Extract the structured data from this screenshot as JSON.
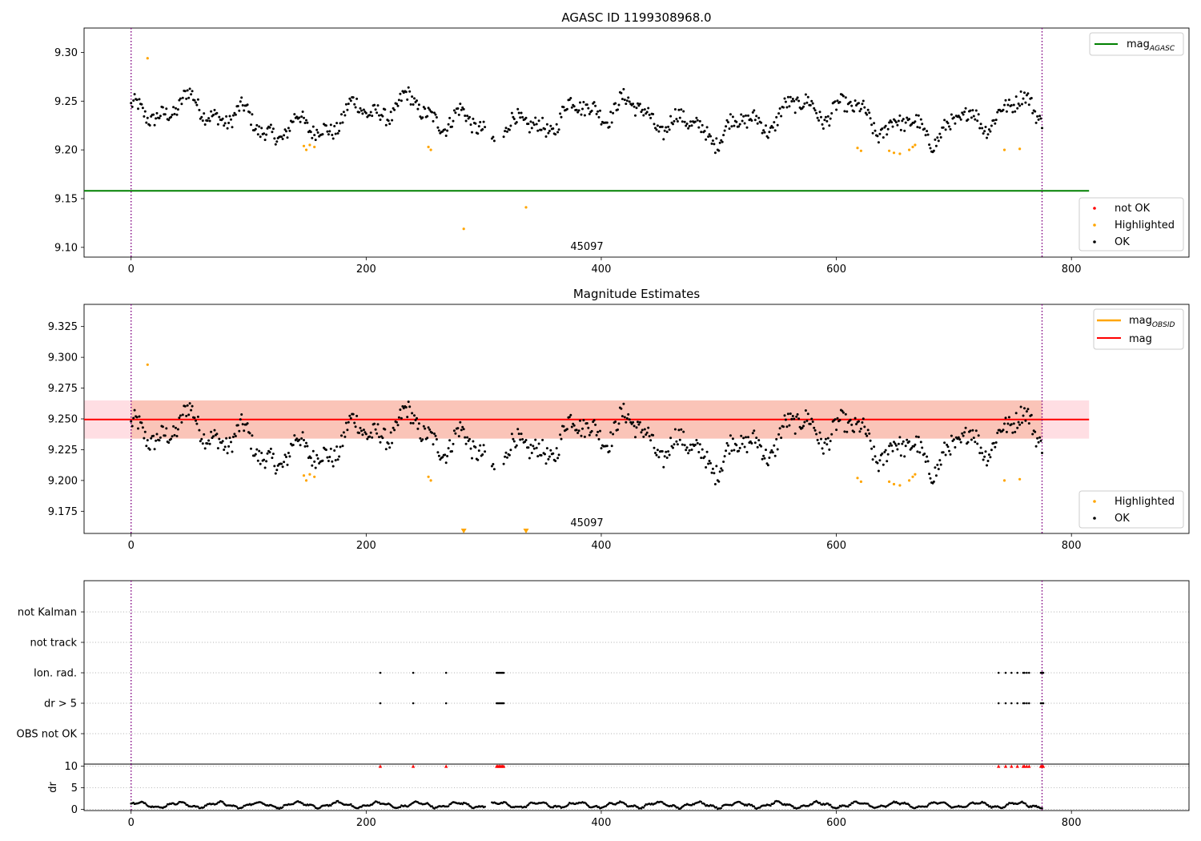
{
  "figure": {
    "background": "#ffffff",
    "colors": {
      "ok": "#000000",
      "highlighted": "#ffa500",
      "not_ok": "#ff0000",
      "mag_agasc": "#008000",
      "mag_obsid": "#ffa500",
      "mag": "#ff0000",
      "band_inner": "#f4a582",
      "band_outer": "#ffb6c1",
      "obs_boundary": "#800080",
      "grid": "#b0b0b0"
    }
  },
  "chart_data": [
    {
      "type": "scatter",
      "title": "AGASC ID 1199308968.0",
      "xlabel": "",
      "ylabel": "",
      "xlim": [
        -40,
        900
      ],
      "ylim": [
        9.09,
        9.325
      ],
      "x_ticks": [
        0,
        200,
        400,
        600,
        800
      ],
      "y_ticks": [
        9.1,
        9.15,
        9.2,
        9.25,
        9.3
      ],
      "y_tick_labels": [
        "9.10",
        "9.15",
        "9.20",
        "9.25",
        "9.30"
      ],
      "legend_upper": {
        "position": "upper right",
        "entries": [
          {
            "label": "mag",
            "sub": "AGASC",
            "color": "#008000",
            "kind": "line"
          }
        ]
      },
      "legend_lower": {
        "position": "lower right",
        "entries": [
          {
            "label": "not OK",
            "color": "#ff0000",
            "kind": "dot"
          },
          {
            "label": "Highlighted",
            "color": "#ffa500",
            "kind": "dot"
          },
          {
            "label": "OK",
            "color": "#000000",
            "kind": "dot"
          }
        ]
      },
      "annotation": {
        "text": "45097",
        "x": 388,
        "y": 9.095
      },
      "vlines": [
        0,
        775
      ],
      "hline": {
        "name": "mag_AGASC",
        "y": 9.158,
        "x_range": [
          -40,
          815
        ]
      },
      "series": [
        {
          "name": "OK",
          "color": "#000000",
          "generator": {
            "x_start": 0,
            "x_end": 775,
            "step": 1,
            "base": 9.232,
            "waves": [
              {
                "amp": 0.012,
                "period": 180,
                "phase": 0
              },
              {
                "amp": 0.01,
                "period": 47,
                "phase": 1.3
              },
              {
                "amp": 0.006,
                "period": 23,
                "phase": 0.7
              }
            ],
            "noise": 0.008,
            "gaps": [
              [
                302,
                306
              ],
              [
                310,
                316
              ]
            ]
          }
        },
        {
          "name": "Highlighted",
          "color": "#ffa500",
          "points": [
            [
              14,
              9.294
            ],
            [
              147,
              9.204
            ],
            [
              149,
              9.2
            ],
            [
              152,
              9.205
            ],
            [
              156,
              9.203
            ],
            [
              253,
              9.203
            ],
            [
              255,
              9.2
            ],
            [
              283,
              9.119
            ],
            [
              336,
              9.141
            ],
            [
              618,
              9.202
            ],
            [
              621,
              9.199
            ],
            [
              645,
              9.199
            ],
            [
              649,
              9.197
            ],
            [
              654,
              9.196
            ],
            [
              662,
              9.2
            ],
            [
              665,
              9.203
            ],
            [
              667,
              9.205
            ],
            [
              743,
              9.2
            ],
            [
              756,
              9.201
            ]
          ]
        }
      ]
    },
    {
      "type": "scatter",
      "title": "Magnitude Estimates",
      "xlabel": "",
      "ylabel": "",
      "xlim": [
        -40,
        900
      ],
      "ylim": [
        9.157,
        9.343
      ],
      "x_ticks": [
        0,
        200,
        400,
        600,
        800
      ],
      "y_ticks": [
        9.175,
        9.2,
        9.225,
        9.25,
        9.275,
        9.3,
        9.325
      ],
      "y_tick_labels": [
        "9.175",
        "9.200",
        "9.225",
        "9.250",
        "9.275",
        "9.300",
        "9.325"
      ],
      "legend_upper": {
        "position": "upper right",
        "entries": [
          {
            "label": "mag",
            "sub": "OBSID",
            "color": "#ffa500",
            "kind": "line"
          },
          {
            "label": "mag",
            "sub": "",
            "color": "#ff0000",
            "kind": "line"
          }
        ]
      },
      "legend_lower": {
        "position": "lower right",
        "entries": [
          {
            "label": "Highlighted",
            "color": "#ffa500",
            "kind": "dot"
          },
          {
            "label": "OK",
            "color": "#000000",
            "kind": "dot"
          }
        ]
      },
      "annotation": {
        "text": "45097",
        "x": 388,
        "y": 9.163
      },
      "vlines": [
        0,
        775
      ],
      "mag": 9.2495,
      "band_inner": [
        9.234,
        9.265
      ],
      "band_outer": [
        9.234,
        9.265
      ],
      "band_x_range": [
        -40,
        815
      ],
      "mag_obsid_segment": [
        0,
        775
      ],
      "offscale_markers": [
        [
          283,
          9.158
        ],
        [
          336,
          9.158
        ]
      ]
    },
    {
      "type": "scatter",
      "title": "",
      "xlabel": "",
      "ylabel": "",
      "xlim": [
        -40,
        900
      ],
      "x_ticks": [
        0,
        200,
        400,
        600,
        800
      ],
      "flag_categories": [
        "OBS not OK",
        "dr > 5",
        "Ion. rad.",
        "not track",
        "not Kalman"
      ],
      "vlines": [
        0,
        775
      ],
      "flags": {
        "dr > 5": [
          212,
          240,
          268,
          311,
          312,
          313,
          314,
          315,
          316,
          317,
          738,
          744,
          749,
          754,
          759,
          760,
          762,
          764,
          774,
          775,
          776
        ],
        "Ion. rad.": [
          212,
          240,
          268,
          311,
          312,
          313,
          314,
          315,
          316,
          317,
          738,
          744,
          749,
          754,
          759,
          760,
          762,
          764,
          774,
          775,
          776
        ]
      }
    },
    {
      "type": "scatter",
      "title": "",
      "xlabel": "",
      "ylabel": "dr",
      "xlim": [
        -40,
        900
      ],
      "ylim": [
        -0.3,
        10.5
      ],
      "y_ticks": [
        0,
        5,
        10
      ],
      "y_tick_labels": [
        "0",
        "5",
        "10"
      ],
      "x_ticks": [
        0,
        200,
        400,
        600,
        800
      ],
      "x_tick_labels": [
        "0",
        "200",
        "400",
        "600",
        "800"
      ],
      "vlines": [
        0,
        775
      ],
      "capped": {
        "value": 10,
        "color": "#ff0000",
        "x": [
          212,
          240,
          268,
          311,
          312,
          313,
          314,
          315,
          316,
          317,
          738,
          744,
          749,
          754,
          759,
          760,
          762,
          764,
          774,
          775,
          776
        ]
      },
      "series": [
        {
          "name": "dr",
          "color": "#000000",
          "generator": {
            "x_start": 0,
            "x_end": 775,
            "step": 1,
            "base": 1.0,
            "waves": [
              {
                "amp": 0.55,
                "period": 34,
                "phase": 0.4
              },
              {
                "amp": 0.25,
                "period": 11,
                "phase": 1.9
              }
            ],
            "noise": 0.15,
            "gaps": [
              [
                302,
                306
              ]
            ]
          }
        }
      ]
    }
  ]
}
